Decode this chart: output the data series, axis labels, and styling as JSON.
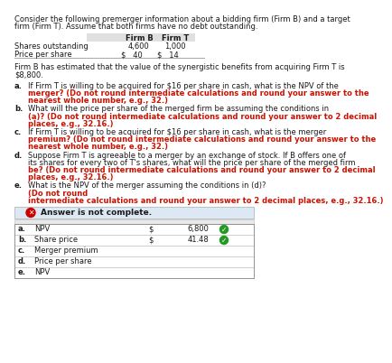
{
  "title_line1": "Consider the following premerger information about a bidding firm (Firm B) and a target",
  "title_line2": "firm (Firm T). Assume that both firms have no debt outstanding.",
  "table_header_b": "Firm B",
  "table_header_t": "Firm T",
  "table_row1": [
    "Shares outstanding",
    "4,600",
    "1,000"
  ],
  "table_row2": [
    "Price per share",
    "$   40",
    "$   14"
  ],
  "synergy_line1": "Firm B has estimated that the value of the synergistic benefits from acquiring Firm T is",
  "synergy_line2": "$8,800.",
  "q_a_black1": "If Firm T is willing to be acquired for $16 per share in cash, what is the NPV of the",
  "q_a_red1": "merger? (Do not round intermediate calculations and round your answer to the",
  "q_a_red2": "nearest whole number, e.g., 32.)",
  "q_b_black1": "What will the price per share of the merged firm be assuming the conditions in",
  "q_b_red1": "(a)? (Do not round intermediate calculations and round your answer to 2 decimal",
  "q_b_red2": "places, e.g., 32.16.)",
  "q_c_black1": "If Firm T is willing to be acquired for $16 per share in cash, what is the merger",
  "q_c_red1": "premium? (Do not round intermediate calculations and round your answer to the",
  "q_c_red2": "nearest whole number, e.g., 32.)",
  "q_d_black1": "Suppose Firm T is agreeable to a merger by an exchange of stock. If B offers one of",
  "q_d_black2": "its shares for every two of T's shares, what will the price per share of the merged firm",
  "q_d_red1": "be? (Do not round intermediate calculations and round your answer to 2 decimal",
  "q_d_red2": "places, e.g., 32.16.)",
  "q_e_black1": "What is the NPV of the merger assuming the conditions in (d)?",
  "q_e_red1": "(Do not round",
  "q_e_red2": "intermediate calculations and round your answer to 2 decimal places, e.g., 32.16.)",
  "banner_text": "Answer is not complete.",
  "banner_bg": "#dce9f5",
  "ans_rows": [
    {
      "label": "a.",
      "field": "NPV",
      "dollar": "$",
      "value": "6,800",
      "check": true
    },
    {
      "label": "b.",
      "field": "Share price",
      "dollar": "$",
      "value": "41.48",
      "check": true
    },
    {
      "label": "c.",
      "field": "Merger premium",
      "dollar": "",
      "value": "",
      "check": false
    },
    {
      "label": "d.",
      "field": "Price per share",
      "dollar": "",
      "value": "",
      "check": false
    },
    {
      "label": "e.",
      "field": "NPV",
      "dollar": "",
      "value": "",
      "check": false
    }
  ],
  "bg_color": "#ffffff",
  "black": "#1a1a1a",
  "red": "#cc1100",
  "fs": 6.0,
  "fs_bold": 6.0
}
